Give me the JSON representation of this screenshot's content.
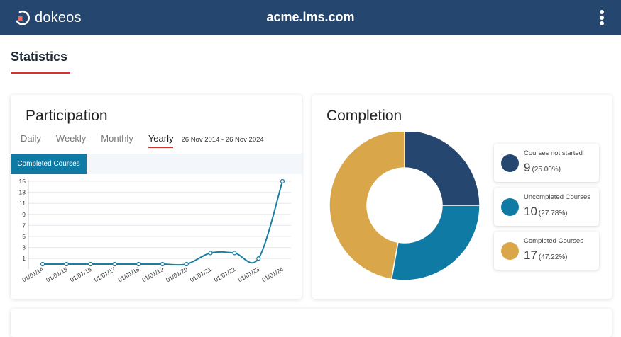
{
  "app": {
    "logo_text": "dokeos",
    "domain": "acme.lms.com"
  },
  "page": {
    "title": "Statistics"
  },
  "participation": {
    "title": "Participation",
    "tabs": [
      {
        "label": "Daily",
        "active": false
      },
      {
        "label": "Weekly",
        "active": false
      },
      {
        "label": "Monthly",
        "active": false
      },
      {
        "label": "Yearly",
        "active": true
      }
    ],
    "date_range": "26 Nov 2014 - 26 Nov 2024",
    "metric_tab": "Completed Courses"
  },
  "chart_data": [
    {
      "type": "line",
      "x": [
        "01/01/14",
        "01/01/15",
        "01/01/16",
        "01/01/17",
        "01/01/18",
        "01/01/19",
        "01/01/20",
        "01/01/21",
        "01/01/22",
        "01/01/23",
        "01/01/24"
      ],
      "values": [
        0,
        0,
        0,
        0,
        0,
        0,
        0,
        2,
        2,
        1,
        15
      ],
      "yticks": [
        1,
        3,
        5,
        7,
        9,
        11,
        13,
        15
      ],
      "ylim": [
        0,
        15
      ],
      "grid": true,
      "color": "#1a7fa3"
    },
    {
      "type": "pie",
      "title": "Completion",
      "donut": true,
      "slices": [
        {
          "label": "Courses not started",
          "value": 9,
          "percent": "(25.00%)",
          "color": "#25466f"
        },
        {
          "label": "Uncompleted Courses",
          "value": 10,
          "percent": "(27.78%)",
          "color": "#0f7aa3"
        },
        {
          "label": "Completed Courses",
          "value": 17,
          "percent": "(47.22%)",
          "color": "#d9a74a"
        }
      ]
    }
  ],
  "colors": {
    "header_bg": "#25466f",
    "accent_red": "#d9302c",
    "logo_orange": "#f26b5b"
  }
}
